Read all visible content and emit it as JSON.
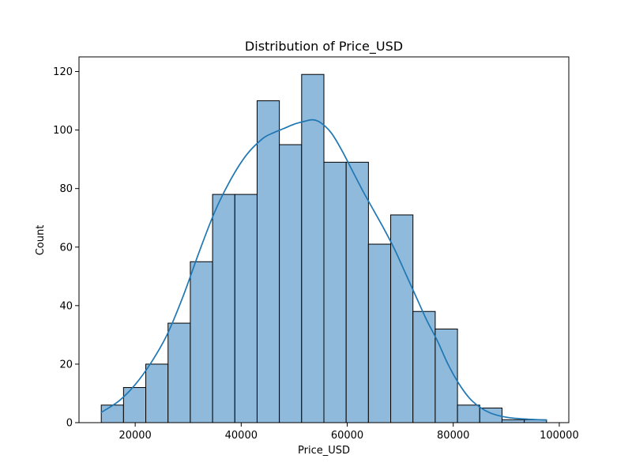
{
  "chart_data": {
    "type": "bar",
    "subtype": "histogram-with-kde",
    "title": "Distribution of Price_USD",
    "xlabel": "Price_USD",
    "ylabel": "Count",
    "xlim": [
      9400,
      101800
    ],
    "ylim": [
      0,
      125
    ],
    "xticks": [
      20000,
      40000,
      60000,
      80000,
      100000
    ],
    "yticks": [
      0,
      20,
      40,
      60,
      80,
      100,
      120
    ],
    "grid": false,
    "legend": "none",
    "bar_color": "#8fbadb",
    "edge_color": "#000000",
    "line_color": "#1f77b4",
    "bins": [
      {
        "x0": 13600,
        "x1": 17800,
        "count": 6
      },
      {
        "x0": 17800,
        "x1": 22000,
        "count": 12
      },
      {
        "x0": 22000,
        "x1": 26200,
        "count": 20
      },
      {
        "x0": 26200,
        "x1": 30400,
        "count": 34
      },
      {
        "x0": 30400,
        "x1": 34600,
        "count": 55
      },
      {
        "x0": 34600,
        "x1": 38800,
        "count": 78
      },
      {
        "x0": 38800,
        "x1": 43000,
        "count": 78
      },
      {
        "x0": 43000,
        "x1": 47200,
        "count": 110
      },
      {
        "x0": 47200,
        "x1": 51400,
        "count": 95
      },
      {
        "x0": 51400,
        "x1": 55600,
        "count": 119
      },
      {
        "x0": 55600,
        "x1": 59800,
        "count": 89
      },
      {
        "x0": 59800,
        "x1": 64000,
        "count": 89
      },
      {
        "x0": 64000,
        "x1": 68200,
        "count": 61
      },
      {
        "x0": 68200,
        "x1": 72400,
        "count": 71
      },
      {
        "x0": 72400,
        "x1": 76600,
        "count": 38
      },
      {
        "x0": 76600,
        "x1": 80800,
        "count": 32
      },
      {
        "x0": 80800,
        "x1": 85000,
        "count": 6
      },
      {
        "x0": 85000,
        "x1": 89200,
        "count": 5
      },
      {
        "x0": 89200,
        "x1": 93400,
        "count": 1
      },
      {
        "x0": 93400,
        "x1": 97600,
        "count": 1
      }
    ],
    "kde": {
      "x": [
        13600,
        17000,
        20000,
        23000,
        26000,
        29000,
        32000,
        35000,
        38000,
        41000,
        44000,
        46000,
        48000,
        50000,
        52000,
        53500,
        55000,
        57000,
        59000,
        61000,
        63000,
        65000,
        67000,
        69000,
        71000,
        73000,
        75000,
        77000,
        79000,
        81000,
        83000,
        85000,
        87000,
        89000,
        91000,
        94000,
        97600
      ],
      "y": [
        3.5,
        7.5,
        13,
        20.5,
        30,
        43,
        58,
        72,
        83,
        91.5,
        97,
        99,
        100.5,
        102,
        103,
        103.5,
        102.5,
        99,
        93,
        86,
        79,
        72.5,
        66,
        59,
        51,
        43,
        35,
        28,
        20,
        13.5,
        8.5,
        5.3,
        3.3,
        2.2,
        1.6,
        1.2,
        0.9
      ]
    }
  }
}
